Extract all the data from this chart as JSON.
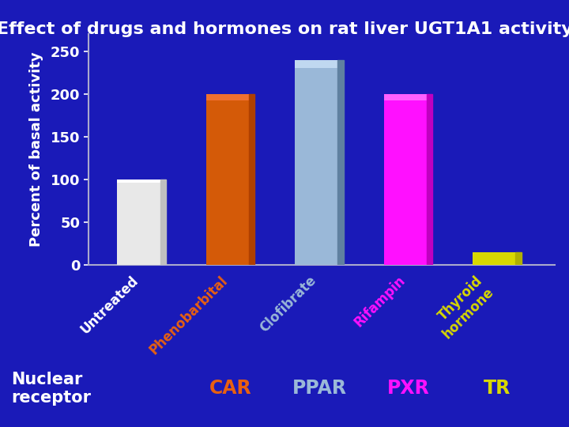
{
  "title": "Effect of drugs and hormones on rat liver UGT1A1 activity",
  "ylabel": "Percent of basal activity",
  "background_color": "#1a1ab8",
  "title_color": "#ffffff",
  "ylabel_color": "#ffffff",
  "ytick_color": "#ffffff",
  "categories": [
    "Untreated",
    "Phenobarbital",
    "Clofibrate",
    "Rifampin",
    "Thyroid\nhormone"
  ],
  "values": [
    100,
    200,
    240,
    200,
    15
  ],
  "bar_colors": [
    "#e8e8e8",
    "#d45a08",
    "#9ab8d8",
    "#ff10ff",
    "#d8d800"
  ],
  "bar_top_colors": [
    "#ffffff",
    "#f07030",
    "#c0d8f0",
    "#ff60ff",
    "#ffff40"
  ],
  "bar_right_colors": [
    "#c0c0c0",
    "#b04000",
    "#6080a0",
    "#c000c0",
    "#b0b000"
  ],
  "tick_label_colors": [
    "#ffffff",
    "#e86010",
    "#9ab8d8",
    "#ff10ff",
    "#d8d800"
  ],
  "ylim": [
    0,
    270
  ],
  "yticks": [
    0,
    50,
    100,
    150,
    200,
    250
  ],
  "nuclear_receptor_label": "Nuclear\nreceptor",
  "nuclear_receptor_color": "#ffffff",
  "receptor_labels": [
    "CAR",
    "PPAR",
    "PXR",
    "TR"
  ],
  "receptor_label_colors": [
    "#e86010",
    "#9ab8d8",
    "#ff10ff",
    "#d8d800"
  ],
  "title_fontsize": 16,
  "ylabel_fontsize": 13,
  "tick_fontsize": 13,
  "receptor_fontsize": 17,
  "nuclear_fontsize": 15,
  "cat_label_fontsize": 12
}
